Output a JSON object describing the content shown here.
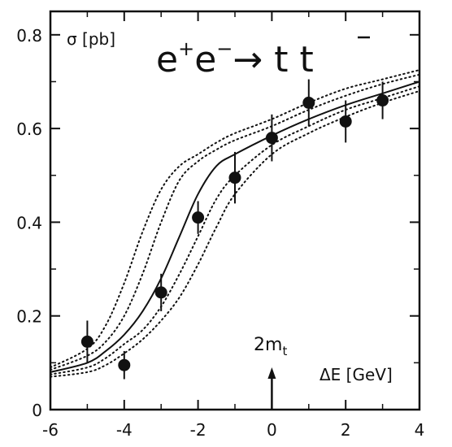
{
  "chart_data": {
    "type": "scatter",
    "title": "e⁺e⁻ → t t̄",
    "ylabel": "σ [pb]",
    "xlabel": "ΔE [GeV]",
    "annotation": "2mₜ",
    "xlim": [
      -6,
      4
    ],
    "ylim": [
      0,
      0.85
    ],
    "x_ticks": [
      -6,
      -4,
      -2,
      0,
      2,
      4
    ],
    "y_ticks": [
      0,
      0.2,
      0.4,
      0.6,
      0.8
    ],
    "x_tick_labels": [
      "-6",
      "-4",
      "-2",
      "0",
      "2",
      "4"
    ],
    "y_tick_labels": [
      "0",
      "0.2",
      "0.4",
      "0.6",
      "0.8"
    ],
    "grid": false,
    "data_points": [
      {
        "x": -5,
        "y": 0.145,
        "err": 0.045
      },
      {
        "x": -4,
        "y": 0.095,
        "err": 0.03
      },
      {
        "x": -3,
        "y": 0.25,
        "err": 0.04
      },
      {
        "x": -2,
        "y": 0.41,
        "err": 0.035
      },
      {
        "x": -1,
        "y": 0.495,
        "err": 0.055
      },
      {
        "x": 0,
        "y": 0.58,
        "err": 0.05
      },
      {
        "x": 1,
        "y": 0.655,
        "err": 0.05
      },
      {
        "x": 2,
        "y": 0.615,
        "err": 0.045
      },
      {
        "x": 3,
        "y": 0.66,
        "err": 0.04
      }
    ],
    "curves": {
      "solid": {
        "x": [
          -6,
          -5,
          -4.5,
          -4,
          -3.5,
          -3,
          -2.5,
          -2,
          -1.5,
          -1,
          0,
          1,
          2,
          3,
          4
        ],
        "y": [
          0.08,
          0.1,
          0.125,
          0.16,
          0.21,
          0.28,
          0.37,
          0.46,
          0.52,
          0.545,
          0.585,
          0.62,
          0.65,
          0.675,
          0.7
        ]
      },
      "dotted": [
        {
          "x": [
            -6,
            -5,
            -4.5,
            -4,
            -3.5,
            -3,
            -2.5,
            -2,
            -1.5,
            -1,
            0,
            1,
            2,
            3,
            4
          ],
          "y": [
            0.09,
            0.13,
            0.18,
            0.27,
            0.38,
            0.47,
            0.52,
            0.545,
            0.57,
            0.59,
            0.62,
            0.655,
            0.685,
            0.705,
            0.725
          ]
        },
        {
          "x": [
            -6,
            -5,
            -4.5,
            -4,
            -3.5,
            -3,
            -2.5,
            -2,
            -1.5,
            -1,
            0,
            1,
            2,
            3,
            4
          ],
          "y": [
            0.085,
            0.115,
            0.145,
            0.2,
            0.29,
            0.4,
            0.49,
            0.53,
            0.555,
            0.575,
            0.605,
            0.64,
            0.67,
            0.695,
            0.715
          ]
        },
        {
          "x": [
            -6,
            -5,
            -4.5,
            -4,
            -3.5,
            -3,
            -2.5,
            -2,
            -1.5,
            -1,
            0,
            1,
            2,
            3,
            4
          ],
          "y": [
            0.075,
            0.09,
            0.11,
            0.14,
            0.17,
            0.22,
            0.29,
            0.37,
            0.45,
            0.5,
            0.565,
            0.605,
            0.64,
            0.665,
            0.69
          ]
        },
        {
          "x": [
            -6,
            -5,
            -4.5,
            -4,
            -3.5,
            -3,
            -2.5,
            -2,
            -1.5,
            -1,
            0,
            1,
            2,
            3,
            4
          ],
          "y": [
            0.07,
            0.08,
            0.095,
            0.12,
            0.15,
            0.19,
            0.24,
            0.31,
            0.39,
            0.46,
            0.545,
            0.59,
            0.625,
            0.655,
            0.68
          ]
        }
      ]
    },
    "arrow_x": 0
  }
}
